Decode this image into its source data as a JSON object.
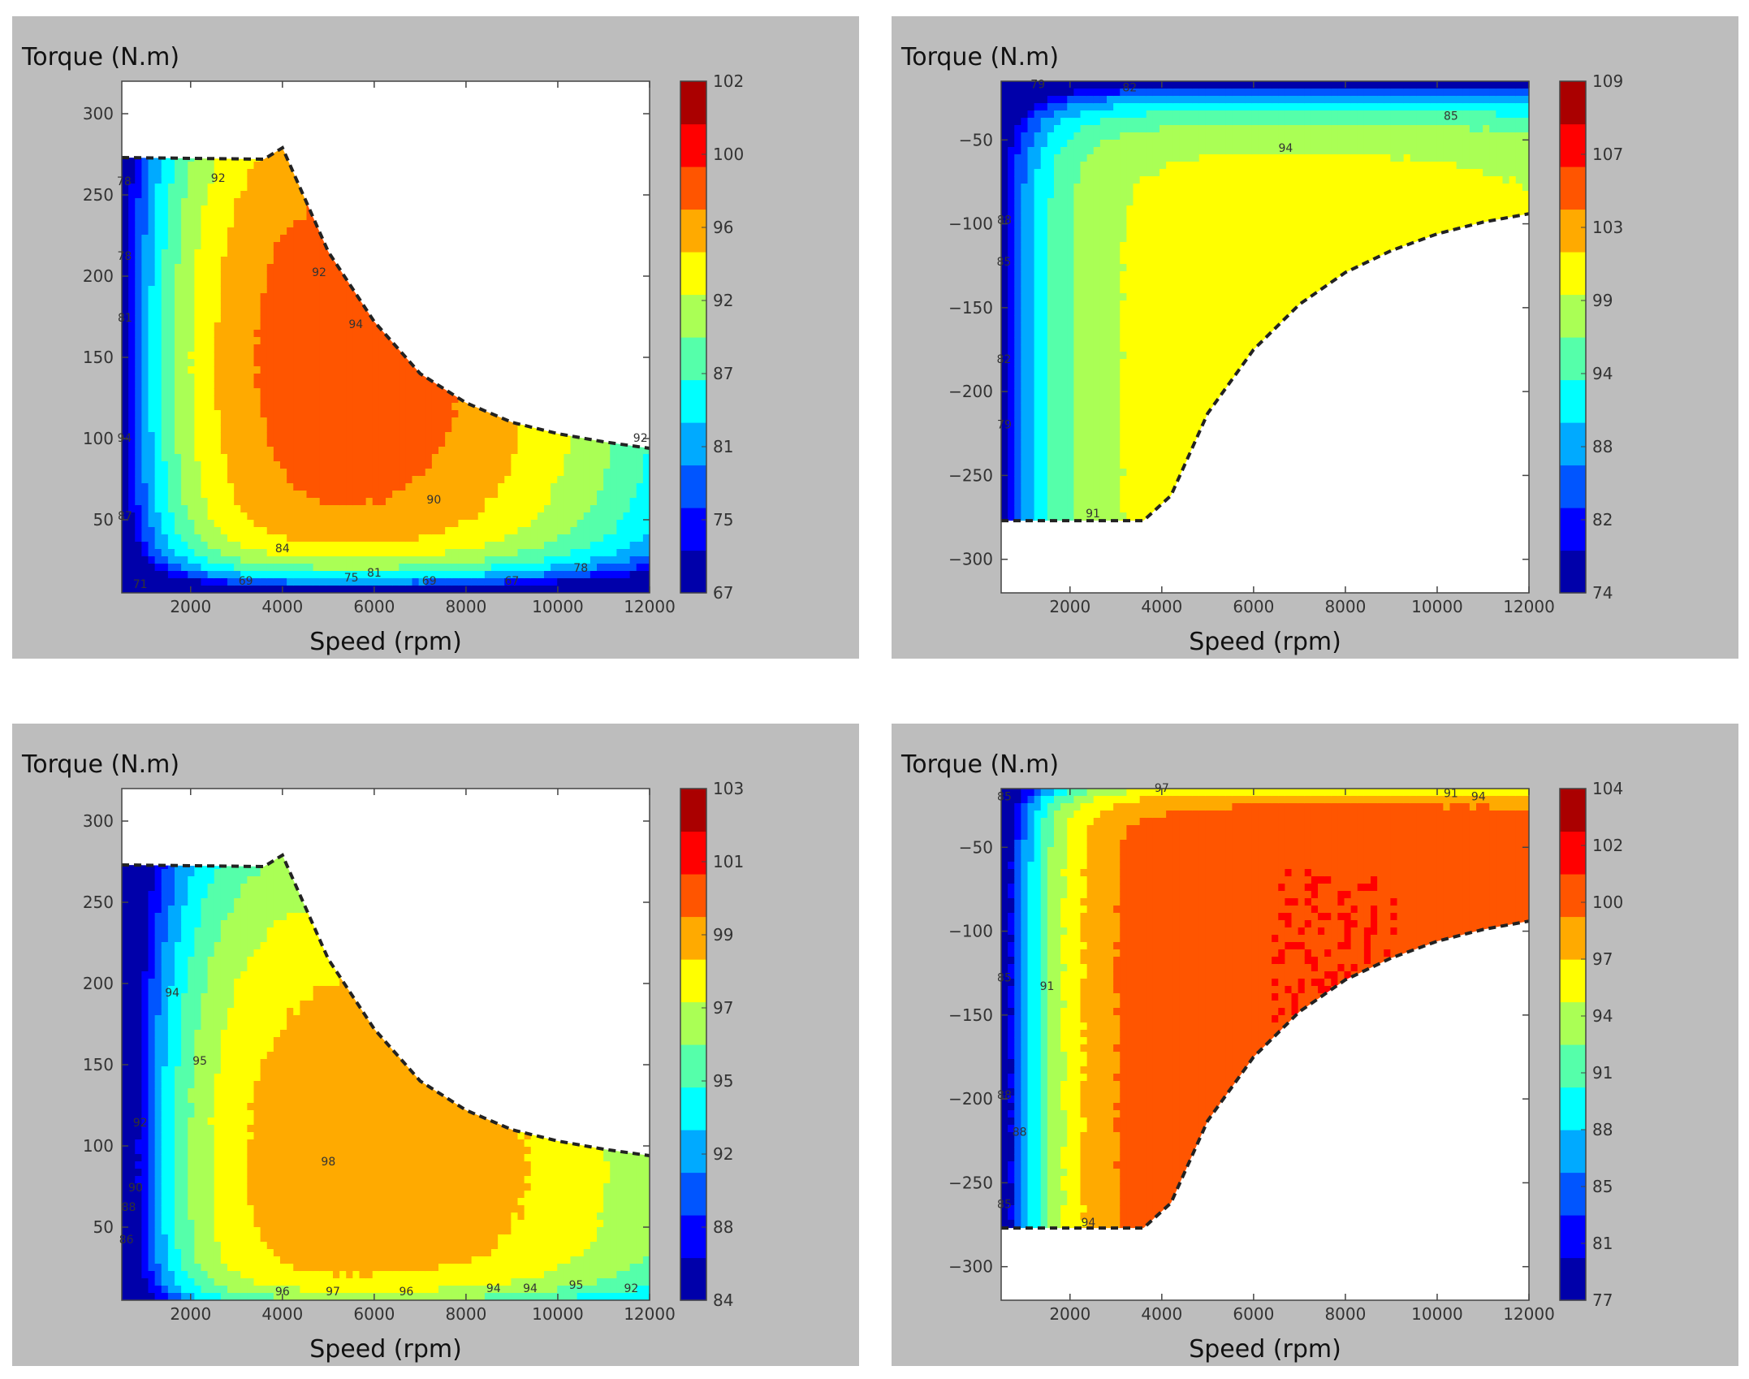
{
  "chart_data": [
    {
      "type": "heatmap",
      "subtype": "filled contour efficiency map",
      "ylabel": "Torque (N.m)",
      "xlabel": "Speed (rpm)",
      "xlim": [
        500,
        12000
      ],
      "ylim": [
        5,
        320
      ],
      "xticks": [
        2000,
        4000,
        6000,
        8000,
        10000,
        12000
      ],
      "yticks": [
        50,
        100,
        150,
        200,
        250,
        300
      ],
      "colorbar": {
        "range": [
          67,
          102
        ],
        "ticks": [
          67,
          75,
          81,
          87,
          92,
          96,
          100,
          102
        ]
      },
      "boundary": [
        [
          500,
          273
        ],
        [
          3600,
          272
        ],
        [
          4000,
          279
        ],
        [
          5000,
          215
        ],
        [
          6000,
          172
        ],
        [
          7000,
          140
        ],
        [
          8000,
          122
        ],
        [
          9000,
          110
        ],
        [
          10000,
          103
        ],
        [
          11000,
          98
        ],
        [
          12000,
          94
        ]
      ],
      "contour_labels": [
        {
          "text": "92",
          "x": 2600,
          "y": 258
        },
        {
          "text": "78",
          "x": 550,
          "y": 256
        },
        {
          "text": "78",
          "x": 560,
          "y": 210
        },
        {
          "text": "81",
          "x": 570,
          "y": 172
        },
        {
          "text": "92",
          "x": 4800,
          "y": 200
        },
        {
          "text": "94",
          "x": 5600,
          "y": 168
        },
        {
          "text": "94",
          "x": 560,
          "y": 98
        },
        {
          "text": "87",
          "x": 570,
          "y": 50
        },
        {
          "text": "90",
          "x": 7300,
          "y": 60
        },
        {
          "text": "84",
          "x": 4000,
          "y": 30
        },
        {
          "text": "81",
          "x": 6000,
          "y": 15
        },
        {
          "text": "75",
          "x": 5500,
          "y": 12
        },
        {
          "text": "78",
          "x": 10500,
          "y": 18
        },
        {
          "text": "67",
          "x": 9000,
          "y": 10
        },
        {
          "text": "69",
          "x": 3200,
          "y": 10
        },
        {
          "text": "71",
          "x": 900,
          "y": 8
        },
        {
          "text": "69",
          "x": 7200,
          "y": 10
        },
        {
          "text": "92",
          "x": 11800,
          "y": 98
        }
      ]
    },
    {
      "type": "heatmap",
      "subtype": "filled contour efficiency map",
      "ylabel": "Torque (N.m)",
      "xlabel": "Speed (rpm)",
      "xlim": [
        500,
        12000
      ],
      "ylim": [
        -320,
        -15
      ],
      "xticks": [
        2000,
        4000,
        6000,
        8000,
        10000,
        12000
      ],
      "yticks": [
        -50,
        -100,
        -150,
        -200,
        -250,
        -300
      ],
      "colorbar": {
        "range": [
          74,
          109
        ],
        "ticks": [
          74,
          82,
          88,
          94,
          99,
          103,
          107,
          109
        ]
      },
      "boundary": [
        [
          500,
          -277
        ],
        [
          3600,
          -277
        ],
        [
          4200,
          -262
        ],
        [
          5000,
          -213
        ],
        [
          6000,
          -175
        ],
        [
          7000,
          -148
        ],
        [
          8000,
          -129
        ],
        [
          9000,
          -116
        ],
        [
          10000,
          -106
        ],
        [
          11000,
          -99
        ],
        [
          12000,
          -94
        ]
      ],
      "contour_labels": [
        {
          "text": "94",
          "x": 6700,
          "y": -57
        },
        {
          "text": "85",
          "x": 10300,
          "y": -38
        },
        {
          "text": "82",
          "x": 3300,
          "y": -21
        },
        {
          "text": "79",
          "x": 1300,
          "y": -19
        },
        {
          "text": "88",
          "x": 570,
          "y": -100
        },
        {
          "text": "85",
          "x": 560,
          "y": -125
        },
        {
          "text": "82",
          "x": 560,
          "y": -183
        },
        {
          "text": "79",
          "x": 570,
          "y": -222
        },
        {
          "text": "91",
          "x": 2500,
          "y": -275
        }
      ]
    },
    {
      "type": "heatmap",
      "subtype": "filled contour efficiency map",
      "ylabel": "Torque (N.m)",
      "xlabel": "Speed (rpm)",
      "xlim": [
        500,
        12000
      ],
      "ylim": [
        5,
        320
      ],
      "xticks": [
        2000,
        4000,
        6000,
        8000,
        10000,
        12000
      ],
      "yticks": [
        50,
        100,
        150,
        200,
        250,
        300
      ],
      "colorbar": {
        "range": [
          84,
          104
        ],
        "ticks": [
          84,
          88,
          92,
          95,
          97,
          99,
          101,
          103
        ]
      },
      "boundary": [
        [
          500,
          273
        ],
        [
          3600,
          272
        ],
        [
          4000,
          279
        ],
        [
          5000,
          215
        ],
        [
          6000,
          172
        ],
        [
          7000,
          140
        ],
        [
          8000,
          122
        ],
        [
          9000,
          110
        ],
        [
          10000,
          103
        ],
        [
          11000,
          98
        ],
        [
          12000,
          94
        ]
      ],
      "contour_labels": [
        {
          "text": "94",
          "x": 1600,
          "y": 192
        },
        {
          "text": "95",
          "x": 2200,
          "y": 150
        },
        {
          "text": "92",
          "x": 900,
          "y": 112
        },
        {
          "text": "90",
          "x": 800,
          "y": 72
        },
        {
          "text": "88",
          "x": 650,
          "y": 60
        },
        {
          "text": "86",
          "x": 600,
          "y": 40
        },
        {
          "text": "98",
          "x": 5000,
          "y": 88
        },
        {
          "text": "96",
          "x": 4000,
          "y": 8
        },
        {
          "text": "97",
          "x": 5100,
          "y": 8
        },
        {
          "text": "96",
          "x": 6700,
          "y": 8
        },
        {
          "text": "94",
          "x": 8600,
          "y": 10
        },
        {
          "text": "94",
          "x": 9400,
          "y": 10
        },
        {
          "text": "95",
          "x": 10400,
          "y": 12
        },
        {
          "text": "92",
          "x": 11600,
          "y": 10
        }
      ]
    },
    {
      "type": "heatmap",
      "subtype": "filled contour efficiency map",
      "ylabel": "Torque (N.m)",
      "xlabel": "Speed (rpm)",
      "xlim": [
        500,
        12000
      ],
      "ylim": [
        -320,
        -15
      ],
      "xticks": [
        2000,
        4000,
        6000,
        8000,
        10000,
        12000
      ],
      "yticks": [
        -50,
        -100,
        -150,
        -200,
        -250,
        -300
      ],
      "colorbar": {
        "range": [
          77,
          104
        ],
        "ticks": [
          77,
          81,
          85,
          88,
          91,
          94,
          97,
          100,
          102,
          104
        ]
      },
      "boundary": [
        [
          500,
          -277
        ],
        [
          3600,
          -277
        ],
        [
          4200,
          -262
        ],
        [
          5000,
          -213
        ],
        [
          6000,
          -175
        ],
        [
          7000,
          -148
        ],
        [
          8000,
          -129
        ],
        [
          9000,
          -116
        ],
        [
          10000,
          -106
        ],
        [
          11000,
          -99
        ],
        [
          12000,
          -94
        ]
      ],
      "contour_labels": [
        {
          "text": "91",
          "x": 1500,
          "y": -135
        },
        {
          "text": "85",
          "x": 570,
          "y": -22
        },
        {
          "text": "85",
          "x": 570,
          "y": -130
        },
        {
          "text": "88",
          "x": 570,
          "y": -200
        },
        {
          "text": "88",
          "x": 900,
          "y": -222
        },
        {
          "text": "85",
          "x": 570,
          "y": -265
        },
        {
          "text": "94",
          "x": 2400,
          "y": -276
        },
        {
          "text": "97",
          "x": 4000,
          "y": -17
        },
        {
          "text": "91",
          "x": 10300,
          "y": -20
        },
        {
          "text": "94",
          "x": 10900,
          "y": -22
        }
      ]
    }
  ]
}
